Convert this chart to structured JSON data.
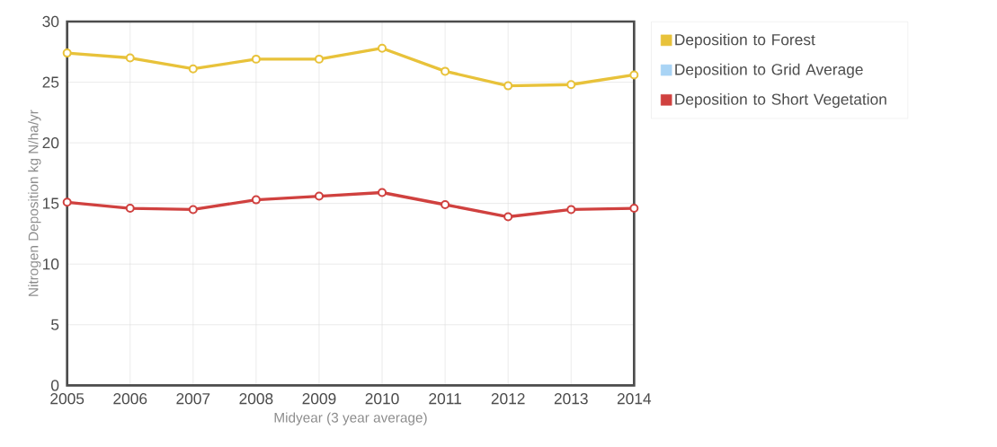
{
  "chart_data": {
    "type": "line",
    "xlabel": "Midyear (3 year average)",
    "ylabel": "Nitrogen Deposition kg N/ha/yr",
    "x": [
      2005,
      2006,
      2007,
      2008,
      2009,
      2010,
      2011,
      2012,
      2013,
      2014
    ],
    "xlim": [
      2005,
      2014
    ],
    "xticks": [
      2005,
      2006,
      2007,
      2008,
      2009,
      2010,
      2011,
      2012,
      2013,
      2014
    ],
    "ylim": [
      0,
      30
    ],
    "yticks": [
      0,
      5,
      10,
      15,
      20,
      25,
      30
    ],
    "series": [
      {
        "name": "Deposition to Forest",
        "color": "#e8c23a",
        "values": [
          27.4,
          27.0,
          26.1,
          26.9,
          26.9,
          27.8,
          25.9,
          24.7,
          24.8,
          25.6
        ]
      },
      {
        "name": "Deposition to Grid Average",
        "color": "#a9d4f5",
        "values": [
          null,
          null,
          null,
          null,
          null,
          null,
          null,
          null,
          null,
          null
        ]
      },
      {
        "name": "Deposition to Short Vegetation",
        "color": "#d0413f",
        "values": [
          15.1,
          14.6,
          14.5,
          15.3,
          15.6,
          15.9,
          14.9,
          13.9,
          14.5,
          14.6
        ]
      }
    ],
    "grid": true,
    "legend": "right",
    "marker": "circle",
    "line_style": "solid"
  }
}
